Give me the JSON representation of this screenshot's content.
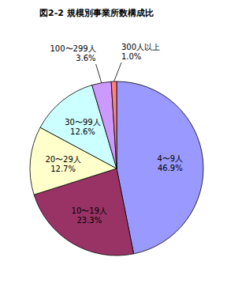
{
  "chart_data": {
    "type": "pie",
    "title": "図2-2 規模別事業所数構成比",
    "categories": [
      "4〜9人",
      "10〜19人",
      "20〜29人",
      "30〜99人",
      "100〜299人",
      "300人以上"
    ],
    "values": [
      46.9,
      23.3,
      12.7,
      12.6,
      3.6,
      1.0
    ],
    "value_labels": [
      "46.9%",
      "23.3%",
      "12.7%",
      "12.6%",
      "3.6%",
      "1.0%"
    ],
    "colors": [
      "#9999ff",
      "#993366",
      "#ffffcc",
      "#ccffff",
      "#cc99ff",
      "#ff8080"
    ],
    "data_labels": true
  }
}
